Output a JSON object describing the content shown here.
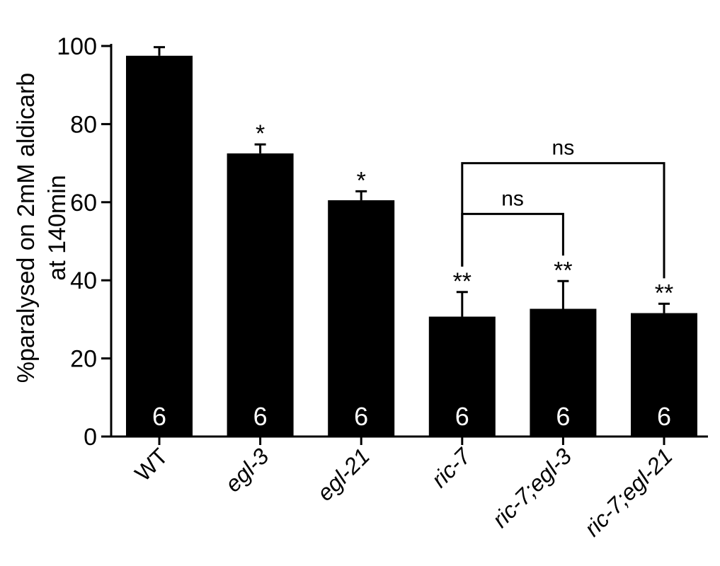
{
  "chart_data": {
    "type": "bar",
    "title": "",
    "ylabel_lines": [
      "%paralysed on 2mM aldicarb",
      "at 140min"
    ],
    "xlabel": "",
    "ylim": [
      0,
      100
    ],
    "yticks": [
      0,
      20,
      40,
      60,
      80,
      100
    ],
    "ytick_labels": [
      "0",
      "20",
      "40",
      "60",
      "80",
      "100"
    ],
    "grid": false,
    "categories": [
      "WT",
      "egl-3",
      "egl-21",
      "ric-7",
      "ric-7;egl-3",
      "ric-7;egl-21"
    ],
    "category_italic": [
      false,
      true,
      true,
      true,
      true,
      true
    ],
    "values": [
      97.5,
      72.5,
      60.5,
      30.7,
      32.7,
      31.6
    ],
    "errors": [
      2.2,
      2.3,
      2.3,
      6.3,
      7.1,
      2.4
    ],
    "n_labels": [
      "6",
      "6",
      "6",
      "6",
      "6",
      "6"
    ],
    "significance": [
      "",
      "*",
      "*",
      "**",
      "**",
      "**"
    ],
    "comparisons": [
      {
        "from": 3,
        "to": 4,
        "label": "ns",
        "level": 57
      },
      {
        "from": 3,
        "to": 5,
        "label": "ns",
        "level": 70
      }
    ],
    "bar_color": "#000000",
    "n_label_color": "#ffffff"
  }
}
